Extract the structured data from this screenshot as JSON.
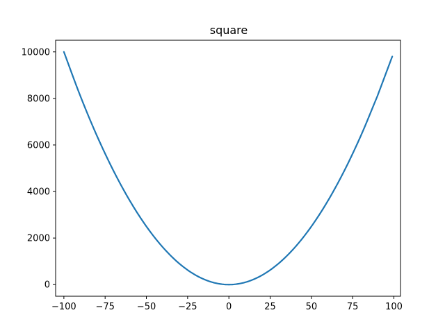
{
  "chart_data": {
    "type": "line",
    "title": "square",
    "xlabel": "",
    "ylabel": "",
    "xlim": [
      -105,
      104
    ],
    "ylim": [
      -500,
      10500
    ],
    "xticks": [
      -100,
      -75,
      -50,
      -25,
      0,
      25,
      50,
      75,
      100
    ],
    "xtick_labels": [
      "−100",
      "−75",
      "−50",
      "−25",
      "0",
      "25",
      "50",
      "75",
      "100"
    ],
    "yticks": [
      0,
      2000,
      4000,
      6000,
      8000,
      10000
    ],
    "ytick_labels": [
      "0",
      "2000",
      "4000",
      "6000",
      "8000",
      "10000"
    ],
    "grid": false,
    "series": [
      {
        "color": "#1f77b4",
        "x": [
          -100,
          -90,
          -80,
          -70,
          -60,
          -50,
          -40,
          -30,
          -20,
          -10,
          0,
          10,
          20,
          30,
          40,
          50,
          60,
          70,
          80,
          90,
          99
        ],
        "y": [
          10000,
          8100,
          6400,
          4900,
          3600,
          2500,
          1600,
          900,
          400,
          100,
          0,
          100,
          400,
          900,
          1600,
          2500,
          3600,
          4900,
          6400,
          8100,
          9801
        ]
      }
    ]
  }
}
